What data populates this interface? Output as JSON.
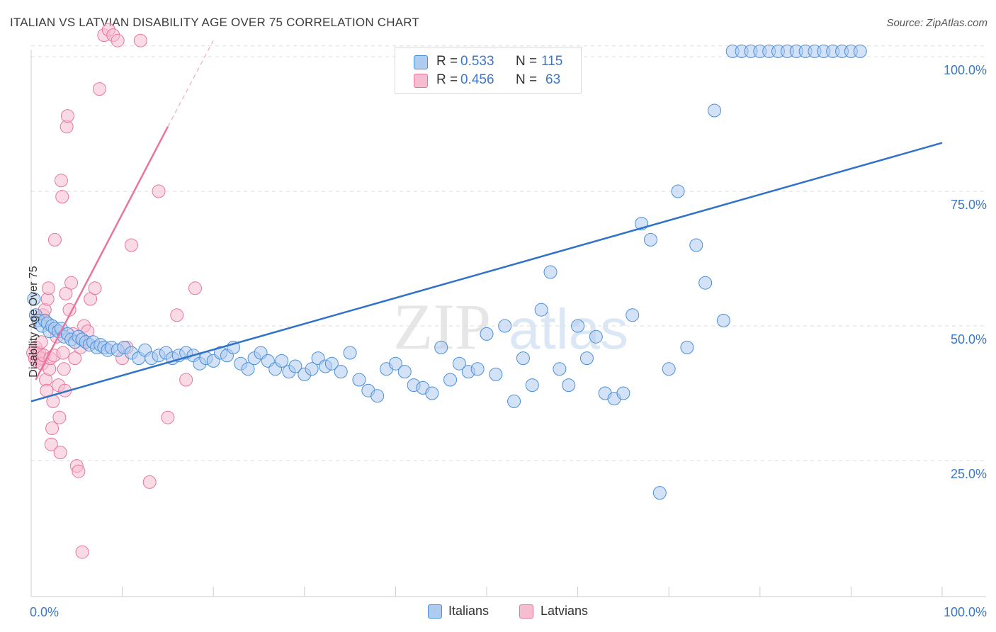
{
  "title": "ITALIAN VS LATVIAN DISABILITY AGE OVER 75 CORRELATION CHART",
  "source": "Source: ZipAtlas.com",
  "watermark": {
    "zip": "ZIP",
    "atlas": "atlas"
  },
  "colors": {
    "italians": "#4a90d9",
    "italians_fill": "#aecbf0",
    "latvians": "#e8769c",
    "latvians_fill": "#f6bdd0",
    "value_text": "#3b78c9",
    "grid": "#dddddd",
    "axis": "#cccccc"
  },
  "legend_top": {
    "rows": [
      {
        "r_label": "R =",
        "r_value": "0.533",
        "n_label": "N =",
        "n_value": "115"
      },
      {
        "r_label": "R =",
        "r_value": "0.456",
        "n_label": "N =",
        "n_value": "63"
      }
    ]
  },
  "chart_data": {
    "type": "scatter",
    "title": "ITALIAN VS LATVIAN DISABILITY AGE OVER 75 CORRELATION CHART",
    "xlabel": "",
    "ylabel": "Disability Age Over 75",
    "xlim": [
      0,
      100
    ],
    "ylim": [
      0,
      102
    ],
    "x_tick_labels": [
      "0.0%",
      "100.0%"
    ],
    "y_tick_values": [
      25,
      50,
      75,
      100
    ],
    "y_tick_labels": [
      "25.0%",
      "50.0%",
      "75.0%",
      "100.0%"
    ],
    "legend": [
      "Italians",
      "Latvians"
    ],
    "series": [
      {
        "name": "Italians",
        "r": 0.533,
        "n": 115,
        "trend": {
          "x": [
            0,
            100
          ],
          "y": [
            36,
            84
          ]
        },
        "points": [
          [
            0.3,
            55
          ],
          [
            0.5,
            52
          ],
          [
            0.8,
            51
          ],
          [
            1.2,
            50
          ],
          [
            1.5,
            51
          ],
          [
            1.8,
            50.5
          ],
          [
            2,
            49
          ],
          [
            2.3,
            50
          ],
          [
            2.6,
            49.5
          ],
          [
            3,
            49
          ],
          [
            3.3,
            49.5
          ],
          [
            3.6,
            48
          ],
          [
            4,
            48.5
          ],
          [
            4.4,
            47.5
          ],
          [
            4.8,
            47
          ],
          [
            5.2,
            48
          ],
          [
            5.6,
            47.5
          ],
          [
            6,
            47
          ],
          [
            6.4,
            46.5
          ],
          [
            6.8,
            47
          ],
          [
            7.2,
            46
          ],
          [
            7.6,
            46.5
          ],
          [
            8,
            46
          ],
          [
            8.4,
            45.5
          ],
          [
            8.8,
            46
          ],
          [
            9.5,
            45.5
          ],
          [
            10.2,
            46
          ],
          [
            11,
            45
          ],
          [
            11.8,
            44
          ],
          [
            12.5,
            45.5
          ],
          [
            13.2,
            44
          ],
          [
            14,
            44.5
          ],
          [
            14.8,
            45
          ],
          [
            15.5,
            44
          ],
          [
            16.2,
            44.5
          ],
          [
            17,
            45
          ],
          [
            17.8,
            44.5
          ],
          [
            18.5,
            43
          ],
          [
            19.2,
            44
          ],
          [
            20,
            43.5
          ],
          [
            20.8,
            45
          ],
          [
            21.5,
            44.5
          ],
          [
            22.2,
            46
          ],
          [
            23,
            43
          ],
          [
            23.8,
            42
          ],
          [
            24.5,
            44
          ],
          [
            25.2,
            45
          ],
          [
            26,
            43.5
          ],
          [
            26.8,
            42
          ],
          [
            27.5,
            43.5
          ],
          [
            28.3,
            41.5
          ],
          [
            29,
            42.5
          ],
          [
            30,
            41
          ],
          [
            30.8,
            42
          ],
          [
            31.5,
            44
          ],
          [
            32.3,
            42.5
          ],
          [
            33,
            43
          ],
          [
            34,
            41.5
          ],
          [
            35,
            45
          ],
          [
            36,
            40
          ],
          [
            37,
            38
          ],
          [
            38,
            37
          ],
          [
            39,
            42
          ],
          [
            40,
            43
          ],
          [
            41,
            41.5
          ],
          [
            42,
            39
          ],
          [
            43,
            38.5
          ],
          [
            44,
            37.5
          ],
          [
            45,
            46
          ],
          [
            46,
            40
          ],
          [
            47,
            43
          ],
          [
            48,
            41.5
          ],
          [
            49,
            42
          ],
          [
            50,
            48.5
          ],
          [
            51,
            41
          ],
          [
            52,
            50
          ],
          [
            53,
            36
          ],
          [
            54,
            44
          ],
          [
            55,
            39
          ],
          [
            56,
            53
          ],
          [
            57,
            60
          ],
          [
            58,
            42
          ],
          [
            59,
            39
          ],
          [
            60,
            50
          ],
          [
            61,
            44
          ],
          [
            62,
            48
          ],
          [
            63,
            37.5
          ],
          [
            64,
            36.5
          ],
          [
            65,
            37.5
          ],
          [
            66,
            52
          ],
          [
            67,
            69
          ],
          [
            68,
            66
          ],
          [
            69,
            19
          ],
          [
            70,
            42
          ],
          [
            71,
            75
          ],
          [
            72,
            46
          ],
          [
            73,
            65
          ],
          [
            74,
            58
          ],
          [
            75,
            90
          ],
          [
            76,
            51
          ],
          [
            77,
            101
          ],
          [
            78,
            101
          ],
          [
            79,
            101
          ],
          [
            80,
            101
          ],
          [
            81,
            101
          ],
          [
            82,
            101
          ],
          [
            83,
            101
          ],
          [
            84,
            101
          ],
          [
            85,
            101
          ],
          [
            86,
            101
          ],
          [
            87,
            101
          ],
          [
            88,
            101
          ],
          [
            89,
            101
          ],
          [
            90,
            101
          ],
          [
            91,
            101
          ]
        ]
      },
      {
        "name": "Latvians",
        "r": 0.456,
        "n": 63,
        "trend": {
          "x": [
            0.5,
            15
          ],
          "y": [
            40,
            87
          ]
        },
        "trend_dashed": {
          "x": [
            15,
            20
          ],
          "y": [
            87,
            103
          ]
        },
        "points": [
          [
            0.2,
            45
          ],
          [
            0.4,
            44
          ],
          [
            0.5,
            46
          ],
          [
            0.6,
            43.5
          ],
          [
            0.8,
            44.5
          ],
          [
            0.9,
            45
          ],
          [
            1,
            44
          ],
          [
            1.1,
            47
          ],
          [
            1.2,
            43
          ],
          [
            1.3,
            52
          ],
          [
            1.4,
            44.5
          ],
          [
            1.5,
            53
          ],
          [
            1.6,
            40
          ],
          [
            1.7,
            38
          ],
          [
            1.8,
            55
          ],
          [
            1.9,
            57
          ],
          [
            2,
            42
          ],
          [
            2.1,
            44
          ],
          [
            2.2,
            28
          ],
          [
            2.3,
            31
          ],
          [
            2.4,
            36
          ],
          [
            2.5,
            44.5
          ],
          [
            2.6,
            66
          ],
          [
            2.8,
            48
          ],
          [
            3,
            39
          ],
          [
            3.1,
            33
          ],
          [
            3.2,
            26.5
          ],
          [
            3.3,
            77
          ],
          [
            3.4,
            74
          ],
          [
            3.5,
            45
          ],
          [
            3.6,
            42
          ],
          [
            3.7,
            38
          ],
          [
            3.8,
            56
          ],
          [
            3.9,
            87
          ],
          [
            4,
            89
          ],
          [
            4.2,
            53
          ],
          [
            4.4,
            58
          ],
          [
            4.6,
            48.5
          ],
          [
            4.8,
            44
          ],
          [
            5,
            24
          ],
          [
            5.2,
            23
          ],
          [
            5.4,
            46
          ],
          [
            5.6,
            8
          ],
          [
            5.8,
            50
          ],
          [
            6,
            47
          ],
          [
            6.2,
            49
          ],
          [
            6.5,
            55
          ],
          [
            7,
            57
          ],
          [
            7.5,
            94
          ],
          [
            8,
            104
          ],
          [
            8.5,
            105
          ],
          [
            9,
            104
          ],
          [
            9.5,
            103
          ],
          [
            10,
            44
          ],
          [
            10.5,
            46
          ],
          [
            11,
            65
          ],
          [
            12,
            103
          ],
          [
            13,
            21
          ],
          [
            14,
            75
          ],
          [
            15,
            33
          ],
          [
            16,
            52
          ],
          [
            17,
            40
          ],
          [
            18,
            57
          ]
        ]
      }
    ]
  },
  "legend_bottom": {
    "italians": "Italians",
    "latvians": "Latvians"
  }
}
